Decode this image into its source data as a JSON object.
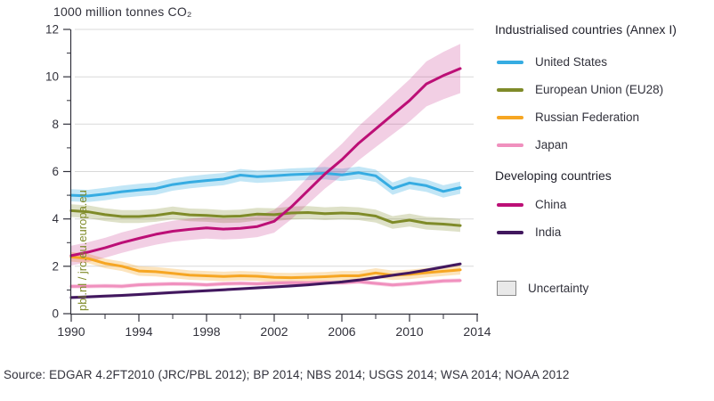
{
  "header": {
    "title": "1000 million tonnes CO₂"
  },
  "watermark": "pbl.nl / jrc.eu.europa.eu",
  "footer": {
    "source": "Source: EDGAR 4.2FT2010 (JRC/PBL 2012); BP 2014; NBS 2014; USGS 2014; WSA 2014; NOAA 2012"
  },
  "legend": {
    "group1_header": "Industrialised countries (Annex I)",
    "group2_header": "Developing countries",
    "uncertainty_label": "Uncertainty",
    "uncertainty_fill": "#e9e9e9",
    "uncertainty_border": "#8a8a8a"
  },
  "colors": {
    "text": "#32323c",
    "axis": "#32323c",
    "grid": "#d9d9d9",
    "watermark": "#7f8b29"
  },
  "chart_data": {
    "type": "line",
    "title": "1000 million tonnes CO₂",
    "xlabel": "",
    "ylabel": "1000 million tonnes CO2",
    "xlim": [
      1990,
      2014
    ],
    "ylim": [
      0,
      12
    ],
    "grid": "horizontal",
    "legend_position": "right",
    "x": [
      1990,
      1991,
      1992,
      1993,
      1994,
      1995,
      1996,
      1997,
      1998,
      1999,
      2000,
      2001,
      2002,
      2003,
      2004,
      2005,
      2006,
      2007,
      2008,
      2009,
      2010,
      2011,
      2012,
      2013
    ],
    "x_major_ticks": [
      1990,
      1994,
      1998,
      2002,
      2006,
      2010,
      2014
    ],
    "x_minor_ticks": [
      1992,
      1996,
      2000,
      2004,
      2008,
      2012
    ],
    "y_major_ticks": [
      0,
      2,
      4,
      6,
      8,
      10,
      12
    ],
    "y_minor_ticks": [
      1,
      3,
      5,
      7,
      9,
      11
    ],
    "series": [
      {
        "id": "united-states",
        "name": "United States",
        "group": "Industrialised countries (Annex I)",
        "color": "#36ace2",
        "band_color": "rgba(54,172,226,0.30)",
        "band_halfwidth": 0.26,
        "values": [
          5.0,
          4.97,
          5.05,
          5.15,
          5.22,
          5.28,
          5.45,
          5.55,
          5.62,
          5.68,
          5.85,
          5.78,
          5.82,
          5.87,
          5.9,
          5.93,
          5.86,
          5.95,
          5.82,
          5.28,
          5.52,
          5.4,
          5.16,
          5.32
        ]
      },
      {
        "id": "european-union",
        "name": "European Union (EU28)",
        "group": "Industrialised countries (Annex I)",
        "color": "#7f8b29",
        "band_color": "rgba(127,139,41,0.26)",
        "band_halfwidth": 0.27,
        "values": [
          4.35,
          4.3,
          4.18,
          4.1,
          4.1,
          4.15,
          4.25,
          4.17,
          4.15,
          4.1,
          4.12,
          4.2,
          4.18,
          4.25,
          4.27,
          4.22,
          4.25,
          4.22,
          4.12,
          3.85,
          3.95,
          3.82,
          3.78,
          3.72
        ]
      },
      {
        "id": "russian-federation",
        "name": "Russian Federation",
        "group": "Industrialised countries (Annex I)",
        "color": "#f6a623",
        "band_color": "rgba(246,166,35,0.30)",
        "band_halfwidth": 0.2,
        "values": [
          2.4,
          2.33,
          2.12,
          2.0,
          1.8,
          1.77,
          1.7,
          1.63,
          1.6,
          1.57,
          1.6,
          1.58,
          1.53,
          1.52,
          1.54,
          1.56,
          1.6,
          1.6,
          1.72,
          1.62,
          1.66,
          1.73,
          1.79,
          1.85
        ]
      },
      {
        "id": "japan",
        "name": "Japan",
        "group": "Industrialised countries (Annex I)",
        "color": "#f090be",
        "band_color": "rgba(240,144,190,0.35)",
        "band_halfwidth": 0.09,
        "values": [
          1.15,
          1.16,
          1.17,
          1.16,
          1.22,
          1.24,
          1.26,
          1.25,
          1.22,
          1.26,
          1.28,
          1.26,
          1.29,
          1.31,
          1.3,
          1.32,
          1.3,
          1.35,
          1.28,
          1.21,
          1.26,
          1.32,
          1.38,
          1.4
        ]
      },
      {
        "id": "china",
        "name": "China",
        "group": "Developing countries",
        "color": "#bc0f76",
        "band_color": "rgba(188,15,118,0.20)",
        "band_halfwidth": [
          0.42,
          0.42,
          0.42,
          0.43,
          0.43,
          0.44,
          0.44,
          0.45,
          0.45,
          0.44,
          0.44,
          0.45,
          0.48,
          0.52,
          0.57,
          0.62,
          0.67,
          0.72,
          0.77,
          0.83,
          0.89,
          0.95,
          1.0,
          1.04
        ],
        "values": [
          2.45,
          2.6,
          2.78,
          3.0,
          3.18,
          3.35,
          3.48,
          3.56,
          3.62,
          3.57,
          3.6,
          3.68,
          3.9,
          4.5,
          5.2,
          5.9,
          6.5,
          7.2,
          7.8,
          8.4,
          9.0,
          9.7,
          10.05,
          10.35
        ]
      },
      {
        "id": "india",
        "name": "India",
        "group": "Developing countries",
        "color": "#41175e",
        "band_color": "rgba(65,23,94,0.18)",
        "band_halfwidth": 0.07,
        "values": [
          0.68,
          0.71,
          0.74,
          0.77,
          0.81,
          0.85,
          0.89,
          0.93,
          0.97,
          1.01,
          1.05,
          1.09,
          1.13,
          1.17,
          1.22,
          1.28,
          1.34,
          1.42,
          1.52,
          1.62,
          1.72,
          1.84,
          1.97,
          2.1
        ]
      }
    ]
  }
}
